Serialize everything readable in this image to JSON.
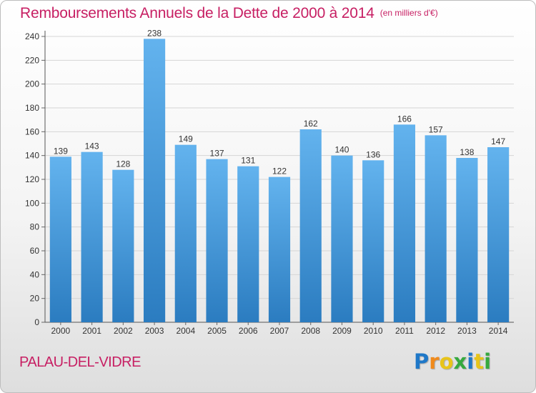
{
  "colors": {
    "title": "#c71f63",
    "bar_top": "#63b3ee",
    "bar_bottom": "#2b7cc0",
    "grid": "#d5d5d5",
    "axis_text": "#333333"
  },
  "chart_data": {
    "type": "bar",
    "title": "Remboursements Annuels de la Dette de 2000 à 2014",
    "unit_label": "(en milliers d'€)",
    "xlabel": "",
    "ylabel": "",
    "categories": [
      "2000",
      "2001",
      "2002",
      "2003",
      "2004",
      "2005",
      "2006",
      "2007",
      "2008",
      "2009",
      "2010",
      "2011",
      "2012",
      "2013",
      "2014"
    ],
    "values": [
      139,
      143,
      128,
      238,
      149,
      137,
      131,
      122,
      162,
      140,
      136,
      166,
      157,
      138,
      147
    ],
    "ylim": [
      0,
      240
    ],
    "yticks": [
      0,
      20,
      40,
      60,
      80,
      100,
      120,
      140,
      160,
      180,
      200,
      220,
      240
    ],
    "grid": true,
    "data_labels": true
  },
  "footer": {
    "town": "PALAU-DEL-VIDRE",
    "logo_letters": [
      {
        "ch": "P",
        "color": "#1f78c8"
      },
      {
        "ch": "r",
        "color": "#f08a1c"
      },
      {
        "ch": "o",
        "color": "#e8c41a"
      },
      {
        "ch": "x",
        "color": "#36a93f"
      },
      {
        "ch": "i",
        "color": "#1f78c8"
      },
      {
        "ch": "t",
        "color": "#e8c41a"
      },
      {
        "ch": "i",
        "color": "#36a93f"
      }
    ]
  }
}
